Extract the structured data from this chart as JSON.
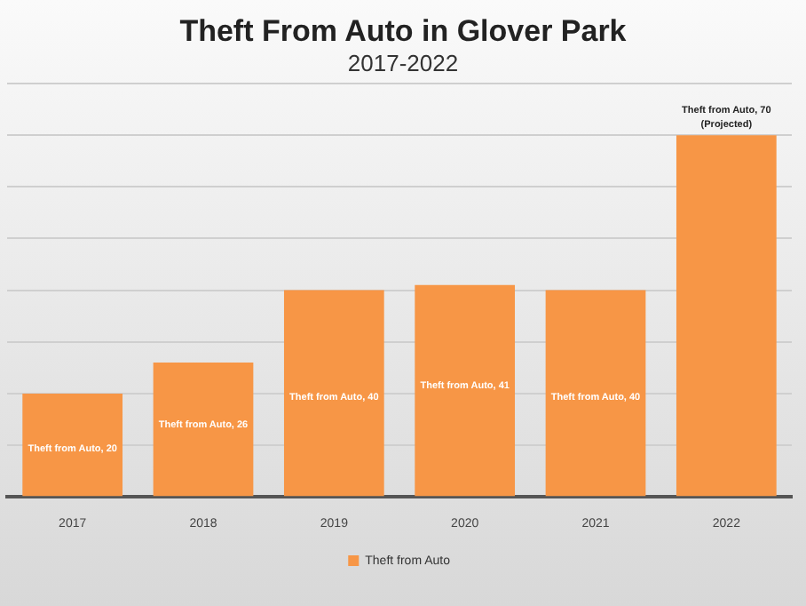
{
  "chart_data": {
    "type": "bar",
    "title": "Theft From Auto in Glover Park",
    "subtitle": "2017-2022",
    "categories": [
      "2017",
      "2018",
      "2019",
      "2020",
      "2021",
      "2022"
    ],
    "series": [
      {
        "name": "Theft from Auto",
        "color": "#f79646",
        "values": [
          20,
          26,
          40,
          41,
          40,
          70
        ],
        "value_labels": [
          "Theft from Auto, 20",
          "Theft from Auto, 26",
          "Theft from Auto, 40",
          "Theft from Auto, 41",
          "Theft from Auto, 40",
          "Theft from Auto, 70\n(Projected)"
        ]
      }
    ],
    "ylim": [
      0,
      80
    ],
    "yticks": [
      {
        "value": 0,
        "label": null
      },
      {
        "value": 10,
        "label": null
      },
      {
        "value": 20,
        "label": null
      },
      {
        "value": 30,
        "label": null
      },
      {
        "value": 40,
        "label": null
      },
      {
        "value": 50,
        "label": null
      },
      {
        "value": 60,
        "label": null
      },
      {
        "value": 70,
        "label": null
      },
      {
        "value": 80,
        "label": null
      }
    ],
    "grid": "y",
    "legend": "bottom",
    "tick_labels": "x"
  }
}
